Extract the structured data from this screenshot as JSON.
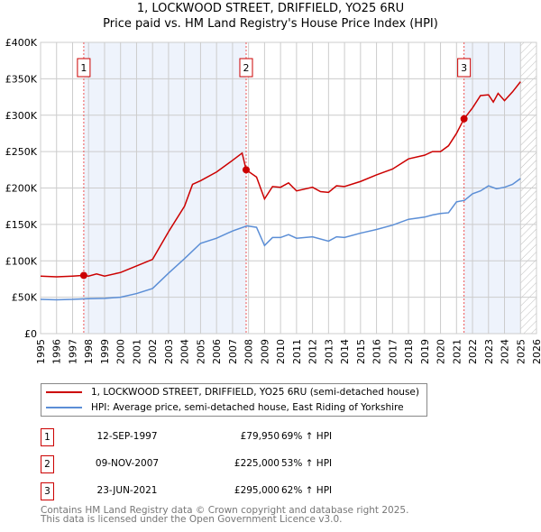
{
  "title": "1, LOCKWOOD STREET, DRIFFIELD, YO25 6RU",
  "subtitle": "Price paid vs. HM Land Registry's House Price Index (HPI)",
  "colors": {
    "property": "#cc0000",
    "hpi": "#5b8ed6",
    "shade": "#eef3fc"
  },
  "chart_data": {
    "type": "line",
    "title": "1, LOCKWOOD STREET, DRIFFIELD, YO25 6RU",
    "subtitle": "Price paid vs. HM Land Registry's House Price Index (HPI)",
    "xlim": [
      1995,
      2026
    ],
    "ylim": [
      0,
      400000
    ],
    "xticks": [
      "1995",
      "1996",
      "1997",
      "1998",
      "1999",
      "2000",
      "2001",
      "2002",
      "2003",
      "2004",
      "2005",
      "2006",
      "2007",
      "2008",
      "2009",
      "2010",
      "2011",
      "2012",
      "2013",
      "2014",
      "2015",
      "2016",
      "2017",
      "2018",
      "2019",
      "2020",
      "2021",
      "2022",
      "2023",
      "2024",
      "2025",
      "2026"
    ],
    "yticks": [
      {
        "v": 0,
        "label": "£0"
      },
      {
        "v": 50000,
        "label": "£50K"
      },
      {
        "v": 100000,
        "label": "£100K"
      },
      {
        "v": 150000,
        "label": "£150K"
      },
      {
        "v": 200000,
        "label": "£200K"
      },
      {
        "v": 250000,
        "label": "£250K"
      },
      {
        "v": 300000,
        "label": "£300K"
      },
      {
        "v": 350000,
        "label": "£350K"
      },
      {
        "v": 400000,
        "label": "£400K"
      }
    ],
    "grid": true,
    "shaded_ranges": [
      [
        1997.7,
        2007.85
      ],
      [
        2021.47,
        2025.0
      ]
    ],
    "hatched_from": 2025.0,
    "series": [
      {
        "name": "1, LOCKWOOD STREET, DRIFFIELD, YO25 6RU (semi-detached house)",
        "color": "#cc0000",
        "x": [
          1995,
          1996,
          1997,
          1997.7,
          1998,
          1998.5,
          1999,
          2000,
          2001,
          2002,
          2003,
          2004,
          2004.5,
          2005,
          2006,
          2007,
          2007.6,
          2007.85,
          2008.5,
          2009,
          2009.5,
          2010,
          2010.5,
          2011,
          2012,
          2012.5,
          2013,
          2013.5,
          2014,
          2015,
          2016,
          2017,
          2018,
          2019,
          2019.5,
          2020,
          2020.5,
          2021,
          2021.47,
          2022,
          2022.5,
          2023,
          2023.3,
          2023.6,
          2024,
          2024.5,
          2025
        ],
        "y": [
          79000,
          78000,
          79000,
          80000,
          79000,
          82000,
          79000,
          84000,
          93000,
          102000,
          140000,
          175000,
          205000,
          210000,
          222000,
          238000,
          248000,
          225000,
          215000,
          185000,
          202000,
          201000,
          207000,
          196000,
          201000,
          195000,
          194000,
          203000,
          202000,
          209000,
          218000,
          226000,
          240000,
          245000,
          250000,
          250000,
          258000,
          275000,
          295000,
          310000,
          327000,
          328000,
          318000,
          330000,
          320000,
          332000,
          346000
        ]
      },
      {
        "name": "HPI: Average price, semi-detached house, East Riding of Yorkshire",
        "color": "#5b8ed6",
        "x": [
          1995,
          1996,
          1997,
          1998,
          1999,
          2000,
          2001,
          2002,
          2003,
          2004,
          2005,
          2006,
          2007,
          2007.9,
          2008.5,
          2009,
          2009.5,
          2010,
          2010.5,
          2011,
          2012,
          2013,
          2013.5,
          2014,
          2015,
          2016,
          2017,
          2018,
          2019,
          2019.5,
          2020,
          2020.5,
          2021,
          2021.5,
          2022,
          2022.5,
          2023,
          2023.5,
          2024,
          2024.5,
          2025
        ],
        "y": [
          47000,
          46500,
          47000,
          48000,
          48500,
          50000,
          55000,
          62000,
          83000,
          103000,
          124000,
          131000,
          141000,
          148000,
          146000,
          121000,
          132000,
          132000,
          136000,
          131000,
          133000,
          127000,
          133000,
          132000,
          138000,
          143000,
          149000,
          157000,
          160000,
          163000,
          165000,
          166000,
          181000,
          183000,
          192000,
          196000,
          203000,
          199000,
          201000,
          205000,
          213000
        ]
      }
    ],
    "sales": [
      {
        "label": "1",
        "x": 1997.7,
        "y": 79950
      },
      {
        "label": "2",
        "x": 2007.85,
        "y": 225000
      },
      {
        "label": "3",
        "x": 2021.47,
        "y": 295000
      }
    ]
  },
  "legend": {
    "property": "1, LOCKWOOD STREET, DRIFFIELD, YO25 6RU (semi-detached house)",
    "hpi": "HPI: Average price, semi-detached house, East Riding of Yorkshire"
  },
  "sales_table": [
    {
      "num": "1",
      "date": "12-SEP-1997",
      "price": "£79,950",
      "hpi": "69% ↑ HPI"
    },
    {
      "num": "2",
      "date": "09-NOV-2007",
      "price": "£225,000",
      "hpi": "53% ↑ HPI"
    },
    {
      "num": "3",
      "date": "23-JUN-2021",
      "price": "£295,000",
      "hpi": "62% ↑ HPI"
    }
  ],
  "footer": {
    "line1": "Contains HM Land Registry data © Crown copyright and database right 2025.",
    "line2": "This data is licensed under the Open Government Licence v3.0."
  }
}
